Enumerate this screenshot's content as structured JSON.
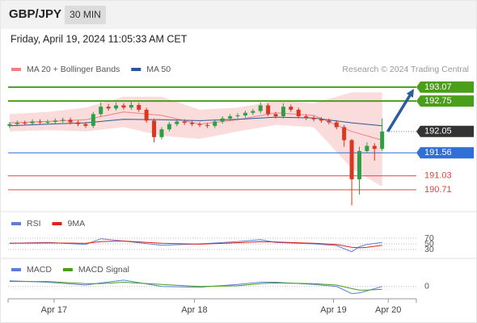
{
  "header": {
    "symbol": "GBP/JPY",
    "interval": "30 MIN",
    "datetime": "Friday, April 19, 2024 11:05:33 AM CET",
    "credit": "Research © 2024 Trading Central"
  },
  "chart_data": [
    {
      "type": "candlestick",
      "xlim": [
        -0.2,
        53.5
      ],
      "ylim": [
        190.245,
        193.31
      ],
      "colors": {
        "up": "#2f9e44",
        "down": "#d9381e"
      },
      "candles": {
        "open": [
          192.18,
          192.22,
          192.25,
          192.24,
          192.28,
          192.26,
          192.27,
          192.3,
          192.32,
          192.26,
          192.22,
          192.18,
          192.45,
          192.62,
          192.58,
          192.65,
          192.6,
          192.66,
          192.55,
          192.3,
          191.92,
          192.1,
          192.22,
          192.28,
          192.25,
          192.22,
          192.2,
          192.18,
          192.28,
          192.35,
          192.4,
          192.42,
          192.48,
          192.52,
          192.65,
          192.45,
          192.4,
          192.62,
          192.55,
          192.4,
          192.36,
          192.33,
          192.3,
          192.26,
          192.15,
          191.85,
          190.95,
          191.6,
          191.72,
          191.65
        ],
        "high": [
          192.27,
          192.3,
          192.3,
          192.33,
          192.33,
          192.32,
          192.35,
          192.37,
          192.37,
          192.31,
          192.27,
          192.5,
          192.72,
          192.68,
          192.72,
          192.7,
          192.73,
          192.71,
          192.6,
          192.35,
          192.15,
          192.27,
          192.33,
          192.33,
          192.3,
          192.27,
          192.25,
          192.33,
          192.4,
          192.45,
          192.47,
          192.53,
          192.57,
          192.72,
          192.7,
          192.5,
          192.7,
          192.67,
          192.6,
          192.45,
          192.41,
          192.38,
          192.35,
          192.31,
          192.2,
          191.88,
          191.7,
          191.8,
          191.78,
          192.35
        ],
        "low": [
          192.13,
          192.17,
          192.19,
          192.19,
          192.21,
          192.21,
          192.22,
          192.25,
          192.21,
          192.17,
          192.13,
          192.13,
          192.4,
          192.53,
          192.53,
          192.55,
          192.55,
          192.5,
          192.25,
          191.8,
          191.87,
          192.05,
          192.17,
          192.2,
          192.17,
          192.15,
          192.13,
          192.13,
          192.23,
          192.3,
          192.35,
          192.37,
          192.43,
          192.47,
          192.4,
          192.35,
          192.35,
          192.5,
          192.35,
          192.31,
          192.28,
          192.25,
          192.21,
          192.1,
          191.7,
          190.35,
          190.6,
          191.55,
          191.38,
          191.6
        ],
        "close": [
          192.22,
          192.25,
          192.24,
          192.28,
          192.26,
          192.27,
          192.3,
          192.32,
          192.26,
          192.22,
          192.18,
          192.45,
          192.62,
          192.58,
          192.65,
          192.6,
          192.66,
          192.55,
          192.3,
          191.92,
          192.1,
          192.22,
          192.28,
          192.25,
          192.22,
          192.2,
          192.18,
          192.28,
          192.35,
          192.4,
          192.42,
          192.48,
          192.52,
          192.65,
          192.45,
          192.4,
          192.62,
          192.55,
          192.4,
          192.36,
          192.33,
          192.3,
          192.26,
          192.15,
          191.85,
          190.95,
          191.6,
          191.72,
          191.65,
          192.05
        ]
      },
      "series": [
        {
          "name": "MA 20 + Bollinger Bands",
          "color": "#f08080",
          "band_color": "#fbdcdc",
          "x": [
            0,
            5,
            10,
            15,
            20,
            25,
            30,
            35,
            40,
            45,
            49
          ],
          "values": [
            192.25,
            192.28,
            192.32,
            192.5,
            192.42,
            192.22,
            192.32,
            192.48,
            192.42,
            192.05,
            191.85
          ],
          "upper": [
            192.45,
            192.5,
            192.6,
            192.85,
            192.85,
            192.55,
            192.6,
            192.75,
            192.7,
            192.95,
            192.95
          ],
          "lower": [
            192.05,
            192.08,
            192.05,
            192.15,
            191.95,
            191.88,
            192.05,
            192.2,
            192.15,
            191.2,
            190.78
          ]
        },
        {
          "name": "MA 50",
          "color": "#2b5797",
          "x": [
            0,
            5,
            10,
            15,
            20,
            25,
            30,
            35,
            40,
            45,
            49
          ],
          "values": [
            192.18,
            192.22,
            192.25,
            192.33,
            192.32,
            192.3,
            192.33,
            192.38,
            192.36,
            192.25,
            192.18
          ]
        }
      ],
      "levels": [
        {
          "value": 193.07,
          "color": "#4a9e1a",
          "style": "target"
        },
        {
          "value": 192.75,
          "color": "#4a9e1a",
          "style": "target"
        },
        {
          "value": 192.05,
          "color": "#333333",
          "style": "current"
        },
        {
          "value": 191.56,
          "color": "#2f6fd6",
          "style": "pivot"
        },
        {
          "value": 191.03,
          "color": "#e0443a",
          "style": "support"
        },
        {
          "value": 190.71,
          "color": "#e0443a",
          "style": "support"
        }
      ],
      "arrow_color": "#2c5d9c",
      "xticks": [
        {
          "value": 5.85,
          "label": "Apr 17"
        },
        {
          "value": 24.3,
          "label": "Apr 18"
        },
        {
          "value": 42.6,
          "label": "Apr 19"
        },
        {
          "value": 49.8,
          "label": "Apr 20"
        }
      ]
    },
    {
      "type": "line",
      "xlim": [
        -0.2,
        53.5
      ],
      "ylim": [
        0,
        100
      ],
      "yticks": [
        70,
        50,
        30
      ],
      "series": [
        {
          "name": "RSI",
          "color": "#5b7fd6",
          "x": [
            0,
            5,
            10,
            12,
            15,
            20,
            25,
            30,
            33,
            35,
            40,
            43,
            45,
            46,
            47,
            49
          ],
          "values": [
            52,
            55,
            48,
            68,
            60,
            45,
            50,
            58,
            65,
            55,
            50,
            44,
            22,
            40,
            48,
            55
          ]
        },
        {
          "name": "9MA",
          "color": "#e0201b",
          "x": [
            0,
            5,
            10,
            12,
            15,
            20,
            25,
            30,
            33,
            35,
            40,
            43,
            45,
            46,
            47,
            49
          ],
          "values": [
            52,
            53,
            52,
            58,
            60,
            52,
            49,
            54,
            58,
            57,
            52,
            48,
            38,
            36,
            38,
            45
          ]
        }
      ]
    },
    {
      "type": "line",
      "xlim": [
        -0.2,
        53.5
      ],
      "ylim": [
        -0.15,
        0.35
      ],
      "yticks": [
        0
      ],
      "series": [
        {
          "name": "MACD",
          "color": "#5b7fd6",
          "x": [
            0,
            5,
            10,
            12,
            15,
            20,
            25,
            30,
            33,
            35,
            40,
            43,
            45,
            46,
            47,
            49
          ],
          "values": [
            0.08,
            0.06,
            0.02,
            0.05,
            0.09,
            0.0,
            -0.01,
            0.03,
            0.06,
            0.06,
            0.03,
            0.0,
            -0.1,
            -0.09,
            -0.06,
            0.0
          ]
        },
        {
          "name": "MACD Signal",
          "color": "#4a9e1a",
          "x": [
            0,
            5,
            10,
            12,
            15,
            20,
            25,
            30,
            33,
            35,
            40,
            43,
            45,
            46,
            47,
            49
          ],
          "values": [
            0.07,
            0.07,
            0.04,
            0.04,
            0.06,
            0.03,
            0.0,
            0.01,
            0.04,
            0.05,
            0.04,
            0.02,
            -0.03,
            -0.05,
            -0.05,
            -0.04
          ]
        }
      ]
    }
  ]
}
